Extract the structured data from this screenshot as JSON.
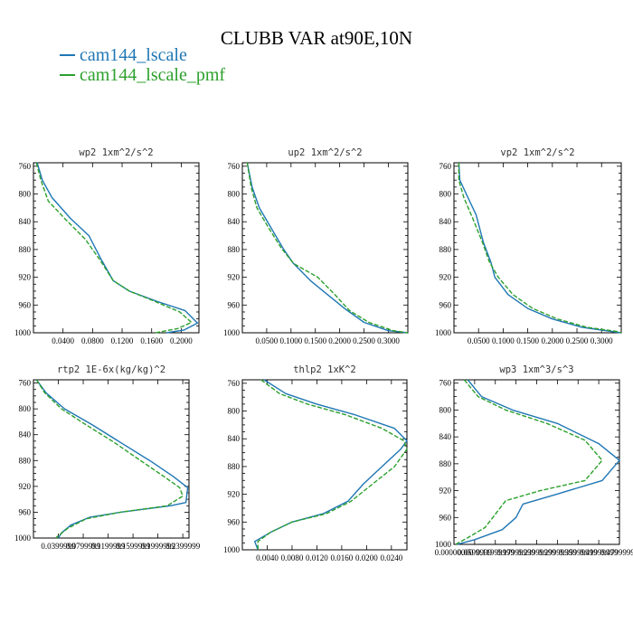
{
  "title": "CLUBB VAR at90E,10N",
  "legend": [
    {
      "label": "cam144_lscale",
      "color": "#1f77b4"
    },
    {
      "label": "cam144_lscale_pmf",
      "color": "#2ca02c"
    }
  ],
  "chart_data": [
    {
      "type": "line",
      "title": "wp2  1xm^2/s^2",
      "xlim": [
        0.0,
        0.224
      ],
      "ylim": [
        1000,
        755
      ],
      "x_ticks": [
        "0.0400",
        "0.0800",
        "0.1200",
        "0.1600",
        "0.2000"
      ],
      "x_tick_values": [
        0.04,
        0.08,
        0.12,
        0.16,
        0.2
      ],
      "y_ticks": [
        "760",
        "800",
        "840",
        "880",
        "920",
        "960",
        "1000"
      ],
      "y_tick_values": [
        760,
        800,
        840,
        880,
        920,
        960,
        1000
      ],
      "series": [
        {
          "name": "cam144_lscale",
          "values": [
            [
              0.005,
              755
            ],
            [
              0.012,
              780
            ],
            [
              0.025,
              805
            ],
            [
              0.05,
              835
            ],
            [
              0.075,
              860
            ],
            [
              0.092,
              895
            ],
            [
              0.108,
              925
            ],
            [
              0.13,
              940
            ],
            [
              0.168,
              955
            ],
            [
              0.205,
              968
            ],
            [
              0.222,
              986
            ],
            [
              0.204,
              996
            ],
            [
              0.18,
              1000
            ]
          ]
        },
        {
          "name": "cam144_lscale_pmf",
          "values": [
            [
              0.004,
              755
            ],
            [
              0.01,
              780
            ],
            [
              0.02,
              810
            ],
            [
              0.042,
              835
            ],
            [
              0.07,
              865
            ],
            [
              0.09,
              895
            ],
            [
              0.108,
              925
            ],
            [
              0.13,
              940
            ],
            [
              0.165,
              955
            ],
            [
              0.198,
              970
            ],
            [
              0.214,
              985
            ],
            [
              0.195,
              994
            ],
            [
              0.165,
              1000
            ]
          ]
        }
      ]
    },
    {
      "type": "line",
      "title": "up2  1xm^2/s^2",
      "xlim": [
        0.0,
        0.34
      ],
      "ylim": [
        1000,
        755
      ],
      "x_ticks": [
        "0.0500",
        "0.1000",
        "0.1500",
        "0.2000",
        "0.2500",
        "0.3000"
      ],
      "x_tick_values": [
        0.05,
        0.1,
        0.15,
        0.2,
        0.25,
        0.3
      ],
      "y_ticks": [
        "760",
        "800",
        "840",
        "880",
        "920",
        "960",
        "1000"
      ],
      "y_tick_values": [
        760,
        800,
        840,
        880,
        920,
        960,
        1000
      ],
      "series": [
        {
          "name": "cam144_lscale",
          "values": [
            [
              0.01,
              755
            ],
            [
              0.02,
              790
            ],
            [
              0.035,
              820
            ],
            [
              0.06,
              850
            ],
            [
              0.085,
              880
            ],
            [
              0.105,
              900
            ],
            [
              0.14,
              925
            ],
            [
              0.175,
              945
            ],
            [
              0.21,
              965
            ],
            [
              0.25,
              985
            ],
            [
              0.3,
              997
            ],
            [
              0.34,
              1000
            ]
          ]
        },
        {
          "name": "cam144_lscale_pmf",
          "values": [
            [
              0.01,
              755
            ],
            [
              0.018,
              790
            ],
            [
              0.03,
              820
            ],
            [
              0.055,
              850
            ],
            [
              0.08,
              878
            ],
            [
              0.105,
              900
            ],
            [
              0.155,
              920
            ],
            [
              0.19,
              945
            ],
            [
              0.22,
              968
            ],
            [
              0.26,
              985
            ],
            [
              0.31,
              997
            ],
            [
              0.34,
              1000
            ]
          ]
        }
      ]
    },
    {
      "type": "line",
      "title": "vp2  1xm^2/s^2",
      "xlim": [
        0.0,
        0.34
      ],
      "ylim": [
        1000,
        755
      ],
      "x_ticks": [
        "0.0500",
        "0.1000",
        "0.1500",
        "0.2000",
        "0.2500",
        "0.3000"
      ],
      "x_tick_values": [
        0.05,
        0.1,
        0.15,
        0.2,
        0.25,
        0.3
      ],
      "y_ticks": [
        "760",
        "800",
        "840",
        "880",
        "920",
        "960",
        "1000"
      ],
      "y_tick_values": [
        760,
        800,
        840,
        880,
        920,
        960,
        1000
      ],
      "series": [
        {
          "name": "cam144_lscale",
          "values": [
            [
              0.01,
              755
            ],
            [
              0.012,
              780
            ],
            [
              0.025,
              800
            ],
            [
              0.045,
              830
            ],
            [
              0.06,
              870
            ],
            [
              0.075,
              898
            ],
            [
              0.083,
              920
            ],
            [
              0.11,
              945
            ],
            [
              0.15,
              965
            ],
            [
              0.2,
              980
            ],
            [
              0.26,
              992
            ],
            [
              0.32,
              998
            ],
            [
              0.34,
              1000
            ]
          ]
        },
        {
          "name": "cam144_lscale_pmf",
          "values": [
            [
              0.01,
              755
            ],
            [
              0.01,
              780
            ],
            [
              0.02,
              805
            ],
            [
              0.038,
              835
            ],
            [
              0.058,
              870
            ],
            [
              0.072,
              898
            ],
            [
              0.09,
              920
            ],
            [
              0.12,
              945
            ],
            [
              0.16,
              965
            ],
            [
              0.21,
              980
            ],
            [
              0.27,
              992
            ],
            [
              0.33,
              998
            ],
            [
              0.34,
              1000
            ]
          ]
        }
      ]
    },
    {
      "type": "line",
      "title": "rtp2  1E-6x(kg/kg)^2",
      "xlim": [
        0.0,
        0.25
      ],
      "ylim": [
        1000,
        755
      ],
      "x_ticks": [
        "0.0399999",
        "0.0799999",
        "0.1199999",
        "0.1599999",
        "0.1999999",
        "0.2399999"
      ],
      "x_tick_values": [
        0.04,
        0.08,
        0.12,
        0.16,
        0.2,
        0.24
      ],
      "y_ticks": [
        "760",
        "800",
        "840",
        "880",
        "920",
        "960",
        "1000"
      ],
      "y_tick_values": [
        760,
        800,
        840,
        880,
        920,
        960,
        1000
      ],
      "series": [
        {
          "name": "cam144_lscale",
          "values": [
            [
              0.005,
              755
            ],
            [
              0.02,
              775
            ],
            [
              0.05,
              800
            ],
            [
              0.095,
              825
            ],
            [
              0.14,
              852
            ],
            [
              0.19,
              882
            ],
            [
              0.225,
              905
            ],
            [
              0.248,
              922
            ],
            [
              0.245,
              945
            ],
            [
              0.22,
              950
            ],
            [
              0.14,
              960
            ],
            [
              0.09,
              968
            ],
            [
              0.06,
              980
            ],
            [
              0.045,
              992
            ],
            [
              0.04,
              1000
            ]
          ]
        },
        {
          "name": "cam144_lscale_pmf",
          "values": [
            [
              0.005,
              755
            ],
            [
              0.018,
              775
            ],
            [
              0.045,
              800
            ],
            [
              0.085,
              825
            ],
            [
              0.13,
              852
            ],
            [
              0.175,
              882
            ],
            [
              0.21,
              905
            ],
            [
              0.235,
              922
            ],
            [
              0.24,
              935
            ],
            [
              0.215,
              950
            ],
            [
              0.14,
              960
            ],
            [
              0.085,
              970
            ],
            [
              0.055,
              985
            ],
            [
              0.038,
              998
            ],
            [
              0.036,
              1000
            ]
          ]
        }
      ]
    },
    {
      "type": "line",
      "title": "thlp2  1xK^2",
      "xlim": [
        0.0,
        0.0265
      ],
      "ylim": [
        1000,
        755
      ],
      "x_ticks": [
        "0.0040",
        "0.0080",
        "0.0120",
        "0.0160",
        "0.0200",
        "0.0240"
      ],
      "x_tick_values": [
        0.004,
        0.008,
        0.012,
        0.016,
        0.02,
        0.024
      ],
      "y_ticks": [
        "760",
        "800",
        "840",
        "880",
        "920",
        "960",
        "1000"
      ],
      "y_tick_values": [
        760,
        800,
        840,
        880,
        920,
        960,
        1000
      ],
      "series": [
        {
          "name": "cam144_lscale",
          "values": [
            [
              0.0035,
              755
            ],
            [
              0.007,
              775
            ],
            [
              0.012,
              790
            ],
            [
              0.018,
              805
            ],
            [
              0.0245,
              825
            ],
            [
              0.0265,
              843
            ],
            [
              0.0255,
              855
            ],
            [
              0.0225,
              880
            ],
            [
              0.0195,
              905
            ],
            [
              0.017,
              930
            ],
            [
              0.013,
              948
            ],
            [
              0.008,
              960
            ],
            [
              0.0045,
              975
            ],
            [
              0.002,
              988
            ],
            [
              0.0025,
              1000
            ]
          ]
        },
        {
          "name": "cam144_lscale_pmf",
          "values": [
            [
              0.003,
              755
            ],
            [
              0.006,
              775
            ],
            [
              0.0105,
              790
            ],
            [
              0.0165,
              805
            ],
            [
              0.0225,
              825
            ],
            [
              0.026,
              843
            ],
            [
              0.0265,
              855
            ],
            [
              0.0245,
              880
            ],
            [
              0.021,
              905
            ],
            [
              0.0175,
              930
            ],
            [
              0.0135,
              948
            ],
            [
              0.008,
              960
            ],
            [
              0.0045,
              975
            ],
            [
              0.0025,
              988
            ],
            [
              0.0025,
              1000
            ]
          ]
        }
      ]
    },
    {
      "type": "line",
      "title": "wp3  1xm^3/s^3",
      "xlim": [
        0.0,
        0.48
      ],
      "ylim": [
        1000,
        755
      ],
      "x_ticks": [
        "0.00000000",
        "0.0599999",
        "0.11999999",
        "0.17999999",
        "0.23999999",
        "0.29999999",
        "0.35999999",
        "0.41999999",
        "0.47999999"
      ],
      "x_tick_values": [
        0.0,
        0.06,
        0.12,
        0.18,
        0.24,
        0.3,
        0.36,
        0.42,
        0.48
      ],
      "y_ticks": [
        "760",
        "800",
        "840",
        "880",
        "920",
        "960",
        "1000"
      ],
      "y_tick_values": [
        760,
        800,
        840,
        880,
        920,
        960,
        1000
      ],
      "series": [
        {
          "name": "cam144_lscale",
          "values": [
            [
              0.04,
              755
            ],
            [
              0.08,
              780
            ],
            [
              0.17,
              800
            ],
            [
              0.3,
              820
            ],
            [
              0.42,
              850
            ],
            [
              0.48,
              875
            ],
            [
              0.43,
              905
            ],
            [
              0.3,
              925
            ],
            [
              0.2,
              940
            ],
            [
              0.18,
              960
            ],
            [
              0.14,
              978
            ],
            [
              0.06,
              993
            ],
            [
              0.01,
              1000
            ]
          ]
        },
        {
          "name": "cam144_lscale_pmf",
          "values": [
            [
              0.03,
              755
            ],
            [
              0.07,
              780
            ],
            [
              0.15,
              800
            ],
            [
              0.27,
              820
            ],
            [
              0.38,
              845
            ],
            [
              0.43,
              875
            ],
            [
              0.38,
              905
            ],
            [
              0.25,
              920
            ],
            [
              0.15,
              935
            ],
            [
              0.12,
              955
            ],
            [
              0.09,
              975
            ],
            [
              0.04,
              990
            ],
            [
              0.005,
              1000
            ]
          ]
        }
      ]
    }
  ]
}
